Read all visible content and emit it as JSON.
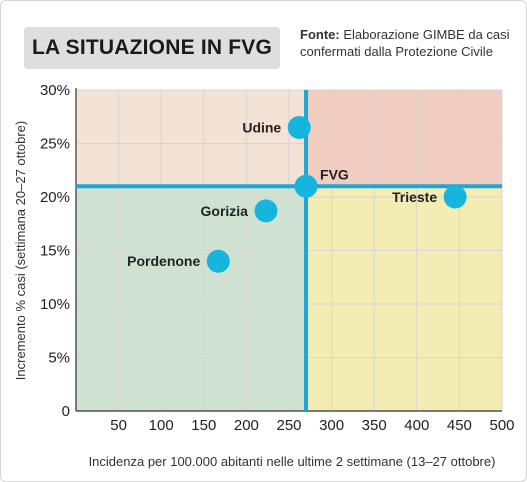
{
  "title": "LA SITUAZIONE IN FVG",
  "source": {
    "label": "Fonte:",
    "text": " Elaborazione GIMBE da casi confermati dalla Protezione Civile"
  },
  "colors": {
    "quad_top_left": "#f4e3d4",
    "quad_top_right": "#f1ccc0",
    "quad_bottom_left": "#cfe2d2",
    "quad_bottom_right": "#f3ecb3",
    "reference_line": "#1ea7d6",
    "point": "#16b5de",
    "grid": "#d5d5d5"
  },
  "chart_data": {
    "type": "scatter",
    "xlabel": "Incidenza per 100.000 abitanti nelle ultime 2 settimane (13–27 ottobre)",
    "ylabel": "Incremento % casi (settimana 20–27 ottobre)",
    "xlim": [
      0,
      500
    ],
    "ylim": [
      0,
      30
    ],
    "x_ticks": [
      50,
      100,
      150,
      200,
      250,
      300,
      350,
      400,
      450,
      500
    ],
    "x_tick_labels": [
      "50",
      "100",
      "150",
      "200",
      "250",
      "300",
      "350",
      "400",
      "450",
      "500"
    ],
    "y_ticks": [
      0,
      5,
      10,
      15,
      20,
      25,
      30
    ],
    "y_tick_labels": [
      "0",
      "5%",
      "10%",
      "15%",
      "20%",
      "25%",
      "30%"
    ],
    "reference_lines": {
      "x": 270,
      "y": 21
    },
    "grid": true,
    "points": [
      {
        "label": "Udine",
        "x": 262,
        "y": 26.5
      },
      {
        "label": "FVG",
        "x": 270,
        "y": 21
      },
      {
        "label": "Trieste",
        "x": 445,
        "y": 20
      },
      {
        "label": "Gorizia",
        "x": 223,
        "y": 18.7
      },
      {
        "label": "Pordenone",
        "x": 167,
        "y": 14
      }
    ]
  }
}
